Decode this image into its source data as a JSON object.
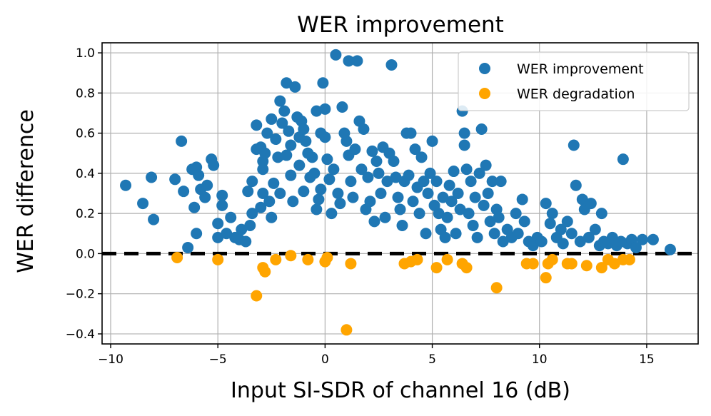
{
  "chart_data": {
    "type": "scatter",
    "title": "WER improvement",
    "xlabel": "Input SI-SDR of channel 16 (dB)",
    "ylabel": "WER difference",
    "xlim": [
      -10.4,
      17.4
    ],
    "ylim": [
      -0.45,
      1.05
    ],
    "xticks": [
      -10,
      -5,
      0,
      5,
      10,
      15
    ],
    "yticks": [
      -0.4,
      -0.2,
      0.0,
      0.2,
      0.4,
      0.6,
      0.8,
      1.0
    ],
    "grid": true,
    "legend_position": "top-right",
    "reference_line": {
      "y": 0.0,
      "style": "dashed",
      "color": "#000000"
    },
    "colors": {
      "improvement": "#1f77b4",
      "degradation": "#ffa500"
    },
    "series": [
      {
        "name": "WER improvement",
        "points": [
          [
            -9.3,
            0.34
          ],
          [
            -8.5,
            0.25
          ],
          [
            -8.1,
            0.38
          ],
          [
            -8.0,
            0.17
          ],
          [
            -7.0,
            0.37
          ],
          [
            -6.7,
            0.56
          ],
          [
            -6.6,
            0.31
          ],
          [
            -6.4,
            0.03
          ],
          [
            -6.2,
            0.42
          ],
          [
            -6.1,
            0.23
          ],
          [
            -6.0,
            0.43
          ],
          [
            -6.0,
            0.1
          ],
          [
            -5.9,
            0.39
          ],
          [
            -5.8,
            0.32
          ],
          [
            -5.6,
            0.28
          ],
          [
            -5.5,
            0.34
          ],
          [
            -5.3,
            0.47
          ],
          [
            -5.2,
            0.44
          ],
          [
            -5.0,
            0.08
          ],
          [
            -5.0,
            0.15
          ],
          [
            -4.8,
            0.24
          ],
          [
            -4.8,
            0.29
          ],
          [
            -4.6,
            0.1
          ],
          [
            -4.4,
            0.18
          ],
          [
            -4.2,
            0.08
          ],
          [
            -4.0,
            0.07
          ],
          [
            -3.9,
            0.12
          ],
          [
            -3.7,
            0.06
          ],
          [
            -3.6,
            0.31
          ],
          [
            -3.5,
            0.14
          ],
          [
            -3.4,
            0.36
          ],
          [
            -3.4,
            0.2
          ],
          [
            -3.2,
            0.64
          ],
          [
            -3.2,
            0.52
          ],
          [
            -3.0,
            0.23
          ],
          [
            -3.0,
            0.53
          ],
          [
            -2.9,
            0.46
          ],
          [
            -2.9,
            0.42
          ],
          [
            -2.9,
            0.3
          ],
          [
            -2.8,
            0.5
          ],
          [
            -2.7,
            0.6
          ],
          [
            -2.6,
            0.26
          ],
          [
            -2.5,
            0.18
          ],
          [
            -2.5,
            0.67
          ],
          [
            -2.4,
            0.35
          ],
          [
            -2.3,
            0.57
          ],
          [
            -2.2,
            0.48
          ],
          [
            -2.1,
            0.76
          ],
          [
            -2.1,
            0.3
          ],
          [
            -2.0,
            0.65
          ],
          [
            -1.9,
            0.71
          ],
          [
            -1.8,
            0.85
          ],
          [
            -1.8,
            0.49
          ],
          [
            -1.7,
            0.61
          ],
          [
            -1.6,
            0.54
          ],
          [
            -1.6,
            0.39
          ],
          [
            -1.5,
            0.26
          ],
          [
            -1.4,
            0.83
          ],
          [
            -1.3,
            0.68
          ],
          [
            -1.2,
            0.58
          ],
          [
            -1.2,
            0.44
          ],
          [
            -1.1,
            0.66
          ],
          [
            -1.0,
            0.62
          ],
          [
            -1.0,
            0.31
          ],
          [
            -0.9,
            0.56
          ],
          [
            -0.8,
            0.5
          ],
          [
            -0.7,
            0.38
          ],
          [
            -0.6,
            0.48
          ],
          [
            -0.5,
            0.4
          ],
          [
            -0.4,
            0.71
          ],
          [
            -0.4,
            0.22
          ],
          [
            -0.3,
            0.27
          ],
          [
            -0.2,
            0.6
          ],
          [
            -0.2,
            0.32
          ],
          [
            -0.1,
            0.85
          ],
          [
            0.0,
            0.72
          ],
          [
            0.0,
            0.58
          ],
          [
            0.1,
            0.47
          ],
          [
            0.2,
            0.37
          ],
          [
            0.3,
            0.2
          ],
          [
            0.4,
            0.42
          ],
          [
            0.5,
            0.99
          ],
          [
            0.6,
            0.3
          ],
          [
            0.7,
            0.25
          ],
          [
            0.8,
            0.73
          ],
          [
            0.9,
            0.6
          ],
          [
            1.0,
            0.56
          ],
          [
            1.1,
            0.49
          ],
          [
            1.1,
            0.96
          ],
          [
            1.2,
            0.36
          ],
          [
            1.3,
            0.28
          ],
          [
            1.4,
            0.52
          ],
          [
            1.5,
            0.96
          ],
          [
            1.6,
            0.66
          ],
          [
            1.7,
            0.42
          ],
          [
            1.8,
            0.62
          ],
          [
            1.9,
            0.22
          ],
          [
            2.0,
            0.38
          ],
          [
            2.1,
            0.26
          ],
          [
            2.2,
            0.51
          ],
          [
            2.3,
            0.16
          ],
          [
            2.4,
            0.46
          ],
          [
            2.5,
            0.4
          ],
          [
            2.6,
            0.3
          ],
          [
            2.7,
            0.53
          ],
          [
            2.8,
            0.18
          ],
          [
            2.9,
            0.36
          ],
          [
            3.0,
            0.5
          ],
          [
            3.1,
            0.94
          ],
          [
            3.2,
            0.46
          ],
          [
            3.3,
            0.38
          ],
          [
            3.4,
            0.28
          ],
          [
            3.5,
            0.22
          ],
          [
            3.6,
            0.14
          ],
          [
            3.7,
            0.36
          ],
          [
            3.8,
            0.6
          ],
          [
            3.9,
            0.39
          ],
          [
            4.0,
            0.6
          ],
          [
            4.1,
            0.26
          ],
          [
            4.2,
            0.52
          ],
          [
            4.3,
            0.33
          ],
          [
            4.4,
            0.2
          ],
          [
            4.5,
            0.48
          ],
          [
            4.6,
            0.36
          ],
          [
            4.7,
            0.1
          ],
          [
            4.8,
            0.3
          ],
          [
            4.9,
            0.4
          ],
          [
            5.0,
            0.56
          ],
          [
            5.1,
            0.24
          ],
          [
            5.2,
            0.36
          ],
          [
            5.3,
            0.2
          ],
          [
            5.4,
            0.12
          ],
          [
            5.5,
            0.28
          ],
          [
            5.6,
            0.08
          ],
          [
            5.7,
            0.18
          ],
          [
            5.8,
            0.34
          ],
          [
            5.9,
            0.26
          ],
          [
            6.0,
            0.41
          ],
          [
            6.1,
            0.1
          ],
          [
            6.2,
            0.3
          ],
          [
            6.3,
            0.22
          ],
          [
            6.4,
            0.71
          ],
          [
            6.5,
            0.6
          ],
          [
            6.5,
            0.54
          ],
          [
            6.6,
            0.42
          ],
          [
            6.7,
            0.2
          ],
          [
            6.8,
            0.36
          ],
          [
            6.9,
            0.14
          ],
          [
            7.0,
            0.28
          ],
          [
            7.1,
            0.08
          ],
          [
            7.2,
            0.4
          ],
          [
            7.3,
            0.62
          ],
          [
            7.4,
            0.24
          ],
          [
            7.5,
            0.44
          ],
          [
            7.6,
            0.3
          ],
          [
            7.7,
            0.16
          ],
          [
            7.8,
            0.36
          ],
          [
            7.9,
            0.1
          ],
          [
            8.0,
            0.22
          ],
          [
            8.1,
            0.18
          ],
          [
            8.2,
            0.36
          ],
          [
            8.3,
            0.06
          ],
          [
            8.5,
            0.12
          ],
          [
            8.7,
            0.08
          ],
          [
            8.9,
            0.2
          ],
          [
            9.0,
            0.1
          ],
          [
            9.2,
            0.27
          ],
          [
            9.3,
            0.16
          ],
          [
            9.5,
            0.06
          ],
          [
            9.7,
            0.04
          ],
          [
            9.9,
            0.08
          ],
          [
            10.1,
            0.06
          ],
          [
            10.3,
            0.25
          ],
          [
            10.5,
            0.15
          ],
          [
            10.6,
            0.2
          ],
          [
            10.8,
            0.08
          ],
          [
            11.0,
            0.12
          ],
          [
            11.1,
            0.05
          ],
          [
            11.3,
            0.16
          ],
          [
            11.5,
            0.1
          ],
          [
            11.6,
            0.54
          ],
          [
            11.7,
            0.34
          ],
          [
            11.9,
            0.06
          ],
          [
            12.0,
            0.27
          ],
          [
            12.1,
            0.22
          ],
          [
            12.3,
            0.08
          ],
          [
            12.4,
            0.25
          ],
          [
            12.6,
            0.12
          ],
          [
            12.8,
            0.04
          ],
          [
            12.9,
            0.2
          ],
          [
            13.0,
            0.06
          ],
          [
            13.2,
            0.05
          ],
          [
            13.4,
            0.08
          ],
          [
            13.6,
            0.04
          ],
          [
            13.8,
            0.06
          ],
          [
            13.9,
            0.47
          ],
          [
            14.1,
            0.05
          ],
          [
            14.3,
            0.07
          ],
          [
            14.5,
            0.03
          ],
          [
            14.8,
            0.07
          ],
          [
            15.3,
            0.07
          ],
          [
            16.1,
            0.02
          ]
        ]
      },
      {
        "name": "WER degradation",
        "points": [
          [
            -6.9,
            -0.02
          ],
          [
            -5.0,
            -0.03
          ],
          [
            -3.2,
            -0.21
          ],
          [
            -2.9,
            -0.07
          ],
          [
            -2.8,
            -0.09
          ],
          [
            -2.3,
            -0.03
          ],
          [
            -1.6,
            -0.01
          ],
          [
            -0.8,
            -0.03
          ],
          [
            0.0,
            -0.04
          ],
          [
            0.1,
            -0.02
          ],
          [
            1.0,
            -0.38
          ],
          [
            1.2,
            -0.05
          ],
          [
            3.7,
            -0.05
          ],
          [
            4.0,
            -0.04
          ],
          [
            4.3,
            -0.03
          ],
          [
            5.2,
            -0.07
          ],
          [
            5.7,
            -0.03
          ],
          [
            6.4,
            -0.05
          ],
          [
            6.6,
            -0.07
          ],
          [
            8.0,
            -0.17
          ],
          [
            9.4,
            -0.05
          ],
          [
            9.7,
            -0.05
          ],
          [
            10.3,
            -0.12
          ],
          [
            10.4,
            -0.05
          ],
          [
            10.6,
            -0.03
          ],
          [
            11.3,
            -0.05
          ],
          [
            11.5,
            -0.05
          ],
          [
            12.2,
            -0.06
          ],
          [
            12.9,
            -0.07
          ],
          [
            13.2,
            -0.03
          ],
          [
            13.5,
            -0.05
          ],
          [
            13.9,
            -0.03
          ],
          [
            14.2,
            -0.03
          ]
        ]
      }
    ]
  }
}
